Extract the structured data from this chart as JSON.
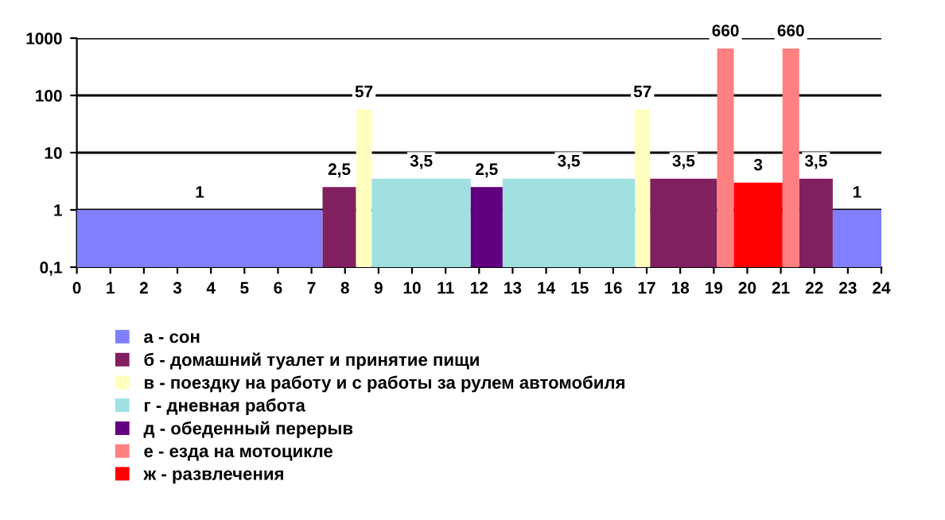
{
  "chart_data": {
    "type": "bar",
    "xlim": [
      0,
      24
    ],
    "xticks": [
      0,
      1,
      2,
      3,
      4,
      5,
      6,
      7,
      8,
      9,
      10,
      11,
      12,
      13,
      14,
      15,
      16,
      17,
      18,
      19,
      20,
      21,
      22,
      23,
      24
    ],
    "log": true,
    "ylim": [
      0.1,
      1000
    ],
    "yticks": [
      {
        "value": 0.1,
        "label": "0,1"
      },
      1,
      10,
      100,
      1000
    ],
    "grid": "y",
    "legend": "bottom left",
    "data_labels": true,
    "series": [
      {
        "name": "а - сон",
        "color": "#8080ff",
        "x": [
          0,
          22.55
        ],
        "values": [
          1,
          1
        ],
        "value_labels": [
          "1",
          "1"
        ]
      },
      {
        "name": "б - домашний туалет и принятие пищи",
        "color": "#80205f",
        "x": [
          7.33,
          17.1,
          21.55
        ],
        "values": [
          2.5,
          3.5,
          3.5
        ],
        "value_labels": [
          "2,5",
          "3,5",
          "3,5"
        ]
      },
      {
        "name": "в - поездку на работу и с работы за рулем автомобиля",
        "color": "#ffffc0",
        "x": [
          8.33,
          16.65
        ],
        "values": [
          57,
          57
        ],
        "value_labels": [
          "57",
          "57"
        ]
      },
      {
        "name": "г - дневная работа",
        "color": "#a0e0e0",
        "x": [
          8.8,
          12.7
        ],
        "values": [
          3.5,
          3.5
        ],
        "value_labels": [
          "3,5",
          "3,5"
        ]
      },
      {
        "name": "д - обеденный перерыв",
        "color": "#600080",
        "x": [
          11.75
        ],
        "values": [
          2.5
        ],
        "value_labels": [
          "2,5"
        ]
      },
      {
        "name": "е - езда на мотоцикле",
        "color": "#ff8080",
        "x": [
          19.1,
          21.05
        ],
        "values": [
          660,
          660
        ],
        "value_labels": [
          "660",
          "660"
        ]
      },
      {
        "name": "ж - развлечения",
        "color": "#ff0000",
        "x": [
          19.6
        ],
        "values": [
          3
        ],
        "value_labels": [
          "3"
        ]
      }
    ]
  }
}
